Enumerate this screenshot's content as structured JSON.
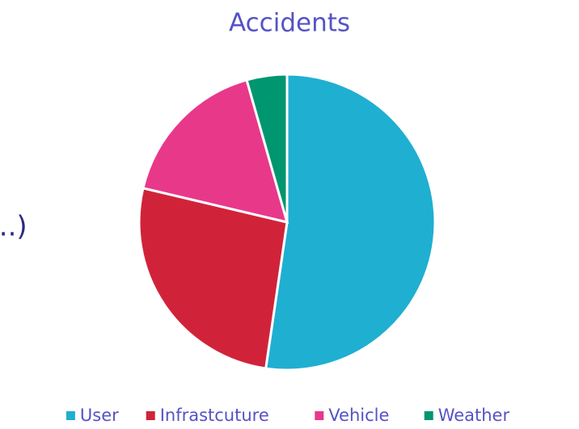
{
  "chart_data": {
    "type": "pie",
    "title": "Accidents",
    "annotation": ",..)",
    "categories": [
      "User",
      "Infrastcuture",
      "Vehicle",
      "Weather"
    ],
    "values": [
      52.3,
      26.4,
      16.9,
      4.4
    ],
    "colors": [
      "#1fafd1",
      "#d0233a",
      "#e8388a",
      "#009670"
    ],
    "legend": "bottom"
  }
}
